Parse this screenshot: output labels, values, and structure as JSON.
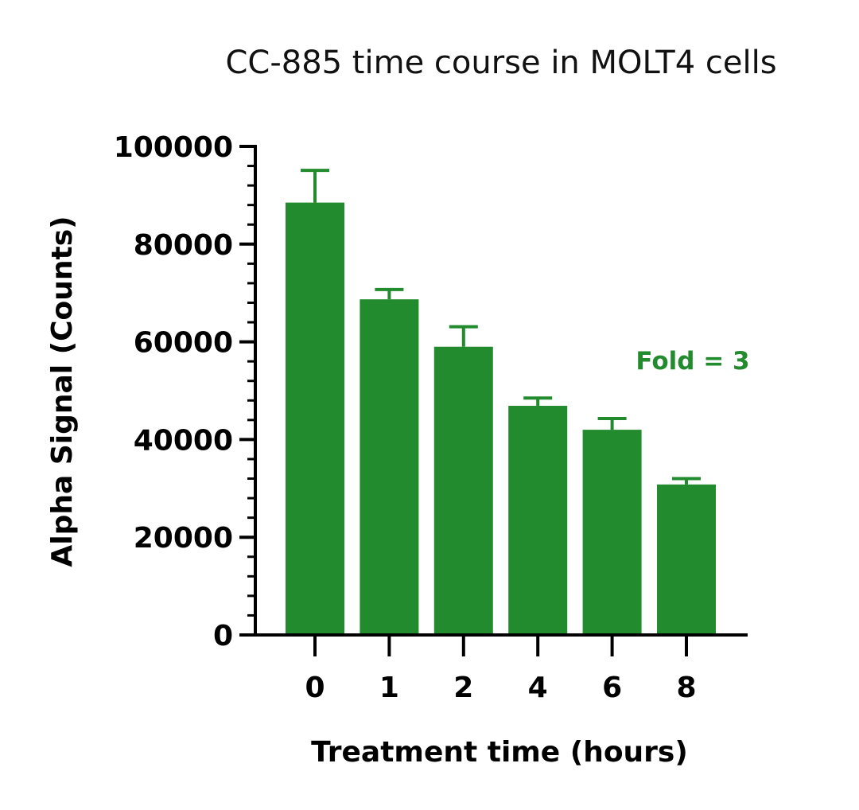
{
  "chart_data": {
    "type": "bar",
    "title": "CC-885 time course in MOLT4 cells",
    "xlabel": "Treatment time (hours)",
    "ylabel": "Alpha Signal (Counts)",
    "categories": [
      "0",
      "1",
      "2",
      "4",
      "6",
      "8"
    ],
    "values": [
      88500,
      68700,
      59000,
      46900,
      42000,
      30800
    ],
    "error_upper": [
      95100,
      70700,
      63100,
      48500,
      44300,
      32000
    ],
    "ylim": [
      0,
      100000
    ],
    "yticks": [
      0,
      20000,
      40000,
      60000,
      80000,
      100000
    ],
    "ytick_labels": [
      "0",
      "20000",
      "40000",
      "60000",
      "80000",
      "100000"
    ],
    "y_minor_ticks_per_major": 5,
    "grid": false,
    "legend": "none",
    "annotation": "Fold = 3",
    "bar_color": "#228B2D",
    "annotation_color": "#228B2D"
  }
}
